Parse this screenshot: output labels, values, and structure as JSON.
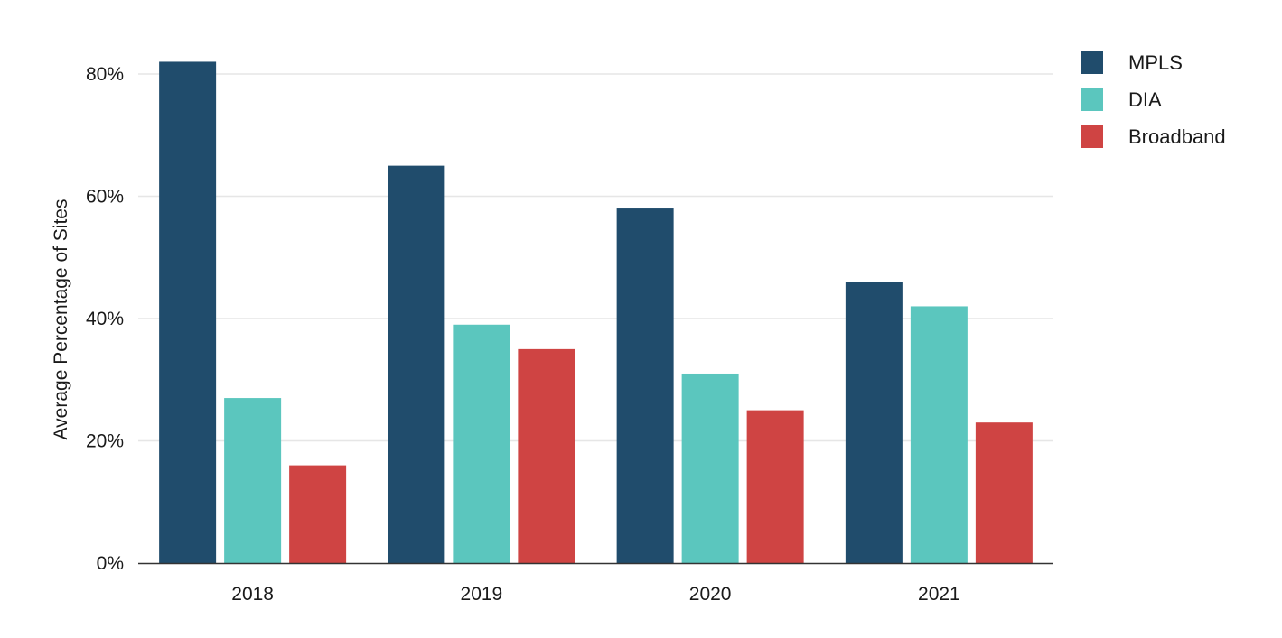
{
  "chart_data": {
    "type": "bar",
    "title": "",
    "xlabel": "",
    "ylabel": "Average Percentage of Sites",
    "categories": [
      "2018",
      "2019",
      "2020",
      "2021"
    ],
    "series": [
      {
        "name": "MPLS",
        "color": "#204c6c",
        "values": [
          82,
          65,
          58,
          46
        ]
      },
      {
        "name": "DIA",
        "color": "#5bc6be",
        "values": [
          27,
          39,
          31,
          42
        ]
      },
      {
        "name": "Broadband",
        "color": "#cf4443",
        "values": [
          16,
          35,
          25,
          23
        ]
      }
    ],
    "ylim": [
      0,
      80
    ],
    "yticks": [
      {
        "value": 0,
        "label": "0%"
      },
      {
        "value": 20,
        "label": "20%"
      },
      {
        "value": 40,
        "label": "40%"
      },
      {
        "value": 60,
        "label": "60%"
      },
      {
        "value": 80,
        "label": "80%"
      }
    ],
    "grid": true,
    "legend_position": "top-right"
  }
}
